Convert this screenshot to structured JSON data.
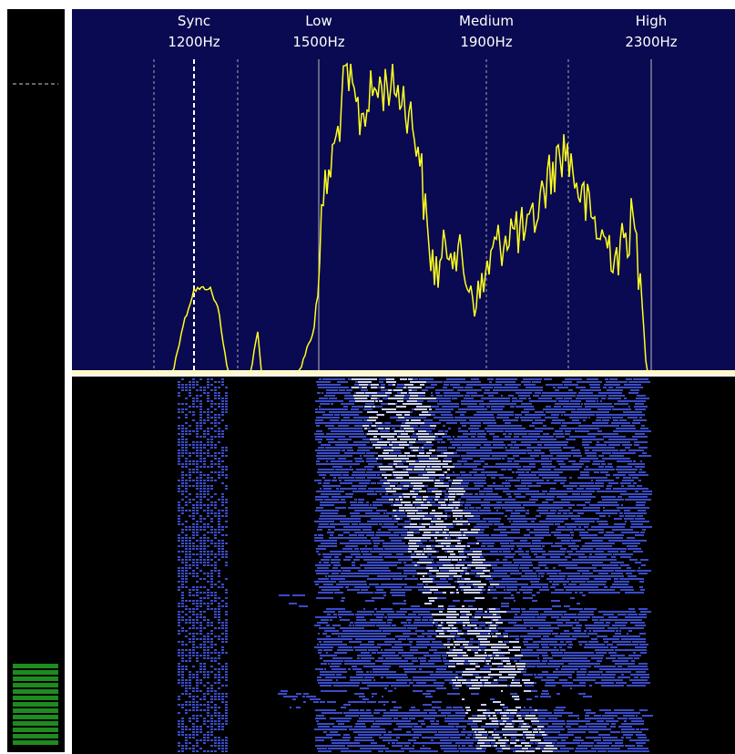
{
  "markers": [
    {
      "name": "Sync",
      "frequency": "1200Hz"
    },
    {
      "name": "Low",
      "frequency": "1500Hz"
    },
    {
      "name": "Medium",
      "frequency": "1900Hz"
    },
    {
      "name": "High",
      "frequency": "2300Hz"
    }
  ]
}
